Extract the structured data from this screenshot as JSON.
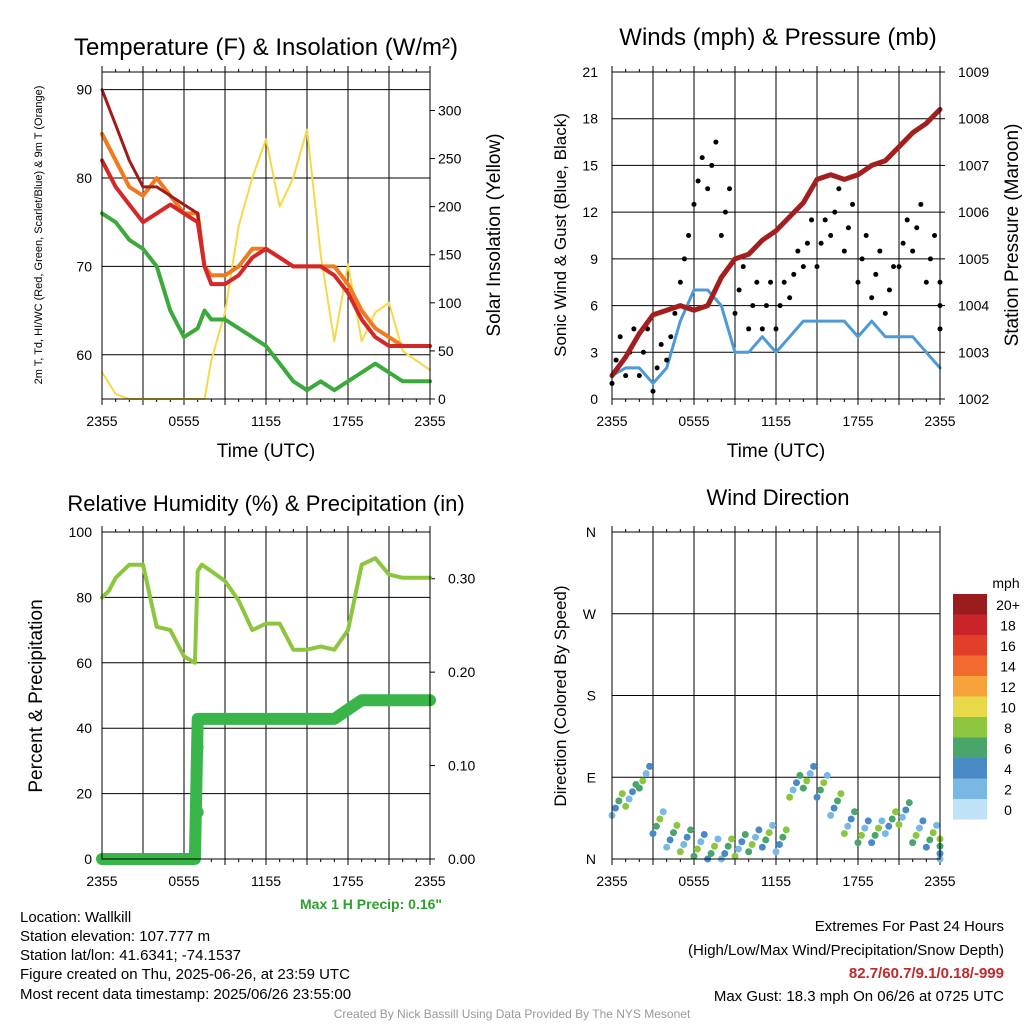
{
  "colors": {
    "temp": "#d62728",
    "dew": "#3aaa3a",
    "heat_index": "#f07a1e",
    "temp9m": "#a01c1c",
    "solar": "#f5d94a",
    "wind": "#4d9ad6",
    "gust": "#000000",
    "pressure": "#a31f1f",
    "rh": "#8cc63f",
    "precip": "#3ab54a",
    "max_precip_text": "#2ca02c",
    "extremes_text": "#c0282a"
  },
  "chart_data": [
    {
      "type": "line",
      "title": "Temperature (F) & Insolation (W/m²)",
      "xlabel": "Time (UTC)",
      "ylabel": "2m T, Td, HI/WC (Red, Green, Scarlet/Blue) & 9m T (Orange)",
      "y2label": "Solar Insolation (Yellow)",
      "x_ticks": [
        "2355",
        "0555",
        "1155",
        "1755",
        "2355"
      ],
      "ylim": [
        55,
        92
      ],
      "y_ticks": [
        60,
        70,
        80,
        90
      ],
      "y2lim": [
        0,
        340
      ],
      "y2_ticks": [
        0,
        50,
        100,
        150,
        200,
        250,
        300
      ],
      "x_hours": [
        0,
        1,
        2,
        3,
        4,
        5,
        6,
        7,
        7.5,
        8,
        9,
        10,
        11,
        12,
        13,
        14,
        15,
        16,
        17,
        18,
        19,
        20,
        21,
        22,
        23,
        24
      ],
      "series": [
        {
          "values": [
            82,
            79,
            77,
            75,
            76,
            77,
            76,
            75,
            70,
            68,
            68,
            69,
            71,
            72,
            71,
            70,
            70,
            70,
            69,
            67,
            64,
            62,
            61,
            61,
            61,
            61
          ]
        },
        {
          "values": [
            76,
            75,
            73,
            72,
            70,
            65,
            62,
            63,
            65,
            64,
            64,
            63,
            62,
            61,
            59,
            57,
            56,
            57,
            56,
            57,
            58,
            59,
            58,
            57,
            57,
            57
          ]
        },
        {
          "values": [
            85,
            82,
            79,
            78,
            80,
            78,
            76,
            76,
            70,
            69,
            69,
            70,
            72,
            72,
            71,
            70,
            70,
            70,
            70,
            68,
            65,
            63,
            62,
            61,
            61,
            61
          ]
        },
        {
          "values": [
            90,
            86,
            82,
            79,
            79,
            78,
            77,
            76,
            70,
            68,
            68,
            69,
            71,
            72,
            71,
            70,
            70,
            70,
            69,
            67,
            64,
            62,
            61,
            61,
            61,
            61
          ]
        },
        {
          "values": [
            28,
            5,
            0,
            0,
            0,
            0,
            0,
            0,
            0,
            40,
            90,
            180,
            230,
            270,
            200,
            230,
            280,
            150,
            60,
            140,
            60,
            90,
            100,
            50,
            40,
            30
          ]
        }
      ]
    },
    {
      "type": "line",
      "title": "Winds (mph) & Pressure (mb)",
      "xlabel": "Time (UTC)",
      "ylabel": "Sonic Wind & Gust (Blue, Black)",
      "y2label": "Station Pressure (Maroon)",
      "x_ticks": [
        "2355",
        "0555",
        "1155",
        "1755",
        "2355"
      ],
      "ylim": [
        0,
        21
      ],
      "y_ticks": [
        0,
        3,
        6,
        9,
        12,
        15,
        18,
        21
      ],
      "y2lim": [
        1002,
        1009
      ],
      "y2_ticks": [
        1002,
        1003,
        1004,
        1005,
        1006,
        1007,
        1008,
        1009
      ],
      "x_hours": [
        0,
        1,
        2,
        3,
        4,
        5,
        6,
        7,
        8,
        9,
        10,
        11,
        12,
        13,
        14,
        15,
        16,
        17,
        18,
        19,
        20,
        21,
        22,
        23,
        24
      ],
      "series": [
        {
          "values": [
            1.5,
            2,
            2,
            1,
            2,
            5,
            7,
            7,
            6,
            3,
            3,
            4,
            3,
            4,
            5,
            5,
            5,
            5,
            4,
            5,
            4,
            4,
            4,
            3,
            2
          ]
        },
        {
          "values": [
            2.5,
            3,
            3,
            2,
            4,
            9,
            14,
            15,
            12,
            7,
            6,
            6,
            6,
            8,
            10,
            10,
            12,
            11,
            9,
            8,
            7,
            10,
            11,
            9,
            6
          ]
        },
        {
          "values": [
            1002.5,
            1002.9,
            1003.4,
            1003.8,
            1003.9,
            1004.0,
            1003.9,
            1004.0,
            1004.6,
            1005.0,
            1005.1,
            1005.4,
            1005.6,
            1005.9,
            1006.2,
            1006.7,
            1006.8,
            1006.7,
            1006.8,
            1007.0,
            1007.1,
            1007.4,
            1007.7,
            1007.9,
            1008.2
          ]
        }
      ]
    },
    {
      "type": "line",
      "title": "Relative Humidity (%) & Precipitation (in)",
      "ylabel": "Percent & Precipitation",
      "x_ticks": [
        "2355",
        "0555",
        "1155",
        "1755",
        "2355"
      ],
      "ylim": [
        0,
        100
      ],
      "y_ticks": [
        0,
        20,
        40,
        60,
        80,
        100
      ],
      "y2lim": [
        0,
        0.35
      ],
      "y2_ticks": [
        "0.00",
        "0.10",
        "0.20",
        "0.30"
      ],
      "x_hours": [
        0,
        0.5,
        1,
        2,
        3,
        4,
        5,
        6,
        6.8,
        7,
        7.3,
        8,
        9,
        10,
        11,
        12,
        13,
        14,
        15,
        16,
        17,
        18,
        19,
        20,
        21,
        22,
        23,
        24
      ],
      "series": [
        {
          "values": [
            80,
            82,
            86,
            90,
            90,
            71,
            70,
            62,
            60,
            88,
            90,
            88,
            85,
            79,
            70,
            72,
            72,
            64,
            64,
            65,
            64,
            70,
            90,
            92,
            87,
            86,
            86,
            86
          ]
        },
        {
          "values": [
            0,
            0,
            0,
            0,
            0,
            0,
            0,
            0,
            0,
            0.15,
            0.15,
            0.15,
            0.15,
            0.15,
            0.15,
            0.15,
            0.15,
            0.15,
            0.15,
            0.15,
            0.15,
            0.16,
            0.17,
            0.17,
            0.17,
            0.17,
            0.17,
            0.17
          ]
        }
      ],
      "precip_jump_points": [
        0.05,
        0.12
      ]
    },
    {
      "type": "scatter",
      "title": "Wind Direction",
      "ylabel": "Direction (Colored By Speed)",
      "x_ticks": [
        "2355",
        "0555",
        "1155",
        "1755",
        "2355"
      ],
      "y_ticks": [
        "N",
        "E",
        "S",
        "W",
        "N"
      ],
      "ylim": [
        0,
        360
      ],
      "legend_title": "mph",
      "legend_labels": [
        "20+",
        "18",
        "16",
        "14",
        "12",
        "10",
        "8",
        "6",
        "4",
        "2",
        "0"
      ],
      "legend_colors": [
        "#9b1c1f",
        "#c8242a",
        "#e0402a",
        "#f26a2e",
        "#f8a23c",
        "#e7d94a",
        "#8cc63f",
        "#4aa56a",
        "#4a8ac4",
        "#7ab8e4",
        "#bfe2f6"
      ],
      "x_hours": [
        0,
        1,
        2,
        3,
        4,
        5,
        6,
        7,
        8,
        9,
        10,
        11,
        12,
        13,
        14,
        15,
        16,
        17,
        18,
        19,
        20,
        21,
        22,
        23,
        24
      ],
      "dir_values": [
        60,
        70,
        90,
        40,
        25,
        20,
        15,
        10,
        10,
        15,
        20,
        25,
        20,
        80,
        90,
        80,
        60,
        40,
        30,
        30,
        40,
        50,
        30,
        25,
        10
      ]
    }
  ],
  "labels": {
    "time_utc": "Time (UTC)",
    "max_precip": "Max 1 H Precip: 0.16\"",
    "info": [
      "Location: Wallkill",
      "Station elevation: 107.777 m",
      "Station lat/lon: 41.6341; -74.1537",
      "Figure created on Thu, 2025-06-26, at 23:59 UTC",
      "Most recent data timestamp: 2025/06/26 23:55:00"
    ],
    "extremes_title": "Extremes For Past 24 Hours",
    "extremes_sub": "(High/Low/Max Wind/Precipitation/Snow Depth)",
    "extremes_values": "82.7/60.7/9.1/0.18/-999",
    "max_gust": "Max Gust: 18.3 mph On 06/26 at 0725 UTC",
    "credit": "Created By Nick Bassill Using Data Provided By The NYS Mesonet"
  }
}
